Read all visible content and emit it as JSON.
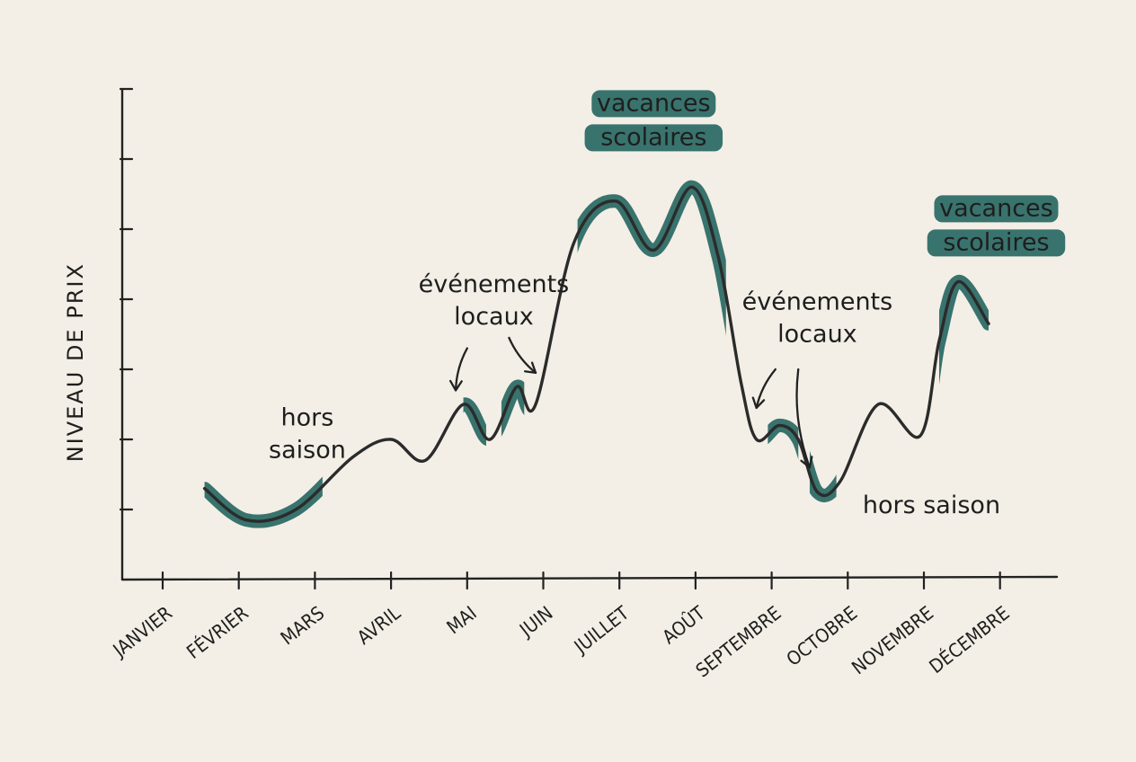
{
  "chart_data": {
    "type": "line",
    "title": "",
    "xlabel": "",
    "ylabel": "NIVEAU DE PRIX",
    "grid": false,
    "categories": [
      "JANVIER",
      "FÉVRIER",
      "MARS",
      "AVRIL",
      "MAI",
      "JUIN",
      "JUILLET",
      "AOÛT",
      "SEPTEMBRE",
      "OCTOBRE",
      "NOVEMBRE",
      "DÉCEMBRE"
    ],
    "ylim": [
      0,
      8
    ],
    "y_ticks": [
      1,
      2,
      3,
      4,
      5,
      6,
      7
    ],
    "curve": [
      {
        "x": 0.55,
        "y": 1.3
      },
      {
        "x": 1.1,
        "y": 0.85
      },
      {
        "x": 1.75,
        "y": 1.0
      },
      {
        "x": 2.5,
        "y": 1.75
      },
      {
        "x": 3.0,
        "y": 2.0
      },
      {
        "x": 3.45,
        "y": 1.7
      },
      {
        "x": 3.95,
        "y": 2.5
      },
      {
        "x": 4.3,
        "y": 2.0
      },
      {
        "x": 4.65,
        "y": 2.75
      },
      {
        "x": 4.9,
        "y": 2.5
      },
      {
        "x": 5.4,
        "y": 4.8
      },
      {
        "x": 5.95,
        "y": 5.4
      },
      {
        "x": 6.45,
        "y": 4.7
      },
      {
        "x": 6.95,
        "y": 5.6
      },
      {
        "x": 7.3,
        "y": 4.6
      },
      {
        "x": 7.6,
        "y": 2.8
      },
      {
        "x": 7.8,
        "y": 2.0
      },
      {
        "x": 8.1,
        "y": 2.2
      },
      {
        "x": 8.35,
        "y": 2.0
      },
      {
        "x": 8.6,
        "y": 1.25
      },
      {
        "x": 8.9,
        "y": 1.4
      },
      {
        "x": 9.4,
        "y": 2.5
      },
      {
        "x": 9.95,
        "y": 2.05
      },
      {
        "x": 10.2,
        "y": 3.4
      },
      {
        "x": 10.45,
        "y": 4.25
      },
      {
        "x": 10.85,
        "y": 3.65
      }
    ],
    "highlights": [
      {
        "from": 0.55,
        "to": 2.1
      },
      {
        "from": 3.95,
        "to": 4.25
      },
      {
        "from": 4.45,
        "to": 4.75
      },
      {
        "from": 5.45,
        "to": 7.4
      },
      {
        "from": 7.95,
        "to": 8.35
      },
      {
        "from": 8.5,
        "to": 8.85
      },
      {
        "from": 10.2,
        "to": 10.85
      }
    ],
    "annotations": [
      {
        "id": "hors-saison-1",
        "lines": [
          "hors",
          "saison"
        ],
        "x": 1.9,
        "y": 2.2
      },
      {
        "id": "evenements-1",
        "lines": [
          "événements",
          "locaux"
        ],
        "x": 4.35,
        "y": 4.1
      },
      {
        "id": "evenements-2",
        "lines": [
          "événements",
          "locaux"
        ],
        "x": 8.6,
        "y": 3.85
      },
      {
        "id": "hors-saison-2",
        "lines": [
          "hors saison"
        ],
        "x": 10.1,
        "y": 0.95
      }
    ],
    "badges": [
      {
        "id": "vacances-ete",
        "lines": [
          "vacances",
          "scolaires"
        ],
        "x": 6.45,
        "y": 6.7
      },
      {
        "id": "vacances-hiver",
        "lines": [
          "vacances",
          "scolaires"
        ],
        "x": 10.95,
        "y": 5.2
      }
    ],
    "arrows": [
      {
        "from": [
          4.0,
          3.3
        ],
        "to": [
          3.85,
          2.7
        ]
      },
      {
        "from": [
          4.55,
          3.45
        ],
        "to": [
          4.9,
          2.95
        ]
      },
      {
        "from": [
          8.05,
          3.0
        ],
        "to": [
          7.8,
          2.45
        ]
      },
      {
        "from": [
          8.35,
          3.0
        ],
        "to": [
          8.5,
          1.6
        ]
      }
    ],
    "colors": {
      "line": "#2b2b2b",
      "highlight": "#2e6b66",
      "badge": "#2e6b66",
      "text": "#1e1e1e",
      "background": "#f3efe6"
    }
  }
}
